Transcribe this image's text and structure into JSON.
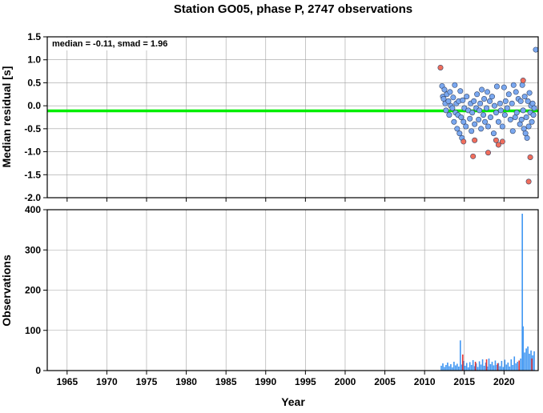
{
  "title": "Station GO05, phase P, 2747 observations",
  "x_axis_label": "Year",
  "chart_data": [
    {
      "type": "scatter",
      "ylabel": "Median residual [s]",
      "annotation": "median = -0.11, smad = 1.96",
      "xlim": [
        1962.5,
        2024.3
      ],
      "ylim": [
        -2.0,
        1.5
      ],
      "x_ticks": [
        1965,
        1970,
        1975,
        1980,
        1985,
        1990,
        1995,
        2000,
        2005,
        2010,
        2015,
        2020
      ],
      "y_ticks": [
        -2.0,
        -1.5,
        -1.0,
        -0.5,
        0.0,
        0.5,
        1.0,
        1.5
      ],
      "y_tick_labels": [
        "-2.0",
        "-1.5",
        "-1.0",
        "-0.5",
        "0.0",
        "0.5",
        "1.0",
        "1.5"
      ],
      "grid": true,
      "median_line": {
        "y": -0.11,
        "color": "#00ee00"
      },
      "series": [
        {
          "color": "#7aa8f0",
          "points": [
            [
              2012.2,
              0.43
            ],
            [
              2012.3,
              0.2
            ],
            [
              2012.4,
              0.15
            ],
            [
              2012.5,
              0.35
            ],
            [
              2012.6,
              0.05
            ],
            [
              2012.7,
              -0.1
            ],
            [
              2012.8,
              0.25
            ],
            [
              2013.0,
              0.1
            ],
            [
              2013.1,
              -0.2
            ],
            [
              2013.2,
              0.3
            ],
            [
              2013.3,
              0.0
            ],
            [
              2013.5,
              -0.05
            ],
            [
              2013.6,
              0.18
            ],
            [
              2013.7,
              -0.35
            ],
            [
              2013.8,
              0.45
            ],
            [
              2013.9,
              -0.15
            ],
            [
              2014.0,
              0.05
            ],
            [
              2014.1,
              -0.5
            ],
            [
              2014.2,
              -0.2
            ],
            [
              2014.3,
              0.1
            ],
            [
              2014.4,
              -0.6
            ],
            [
              2014.5,
              0.32
            ],
            [
              2014.6,
              -0.25
            ],
            [
              2014.7,
              -0.7
            ],
            [
              2014.8,
              0.12
            ],
            [
              2014.9,
              -0.35
            ],
            [
              2015.0,
              -0.05
            ],
            [
              2015.2,
              -0.45
            ],
            [
              2015.3,
              0.2
            ],
            [
              2015.5,
              -0.1
            ],
            [
              2015.7,
              -0.28
            ],
            [
              2015.8,
              0.05
            ],
            [
              2015.9,
              -0.55
            ],
            [
              2016.0,
              -0.15
            ],
            [
              2016.2,
              0.1
            ],
            [
              2016.3,
              -0.4
            ],
            [
              2016.5,
              -0.05
            ],
            [
              2016.6,
              0.25
            ],
            [
              2016.8,
              -0.3
            ],
            [
              2016.9,
              -0.1
            ],
            [
              2017.0,
              0.05
            ],
            [
              2017.1,
              -0.5
            ],
            [
              2017.2,
              0.35
            ],
            [
              2017.4,
              -0.2
            ],
            [
              2017.5,
              0.15
            ],
            [
              2017.6,
              -0.35
            ],
            [
              2017.8,
              -0.05
            ],
            [
              2017.9,
              0.3
            ],
            [
              2018.0,
              -0.45
            ],
            [
              2018.2,
              0.1
            ],
            [
              2018.3,
              -0.25
            ],
            [
              2018.5,
              0.2
            ],
            [
              2018.7,
              -0.6
            ],
            [
              2018.8,
              0.0
            ],
            [
              2019.0,
              -0.15
            ],
            [
              2019.1,
              0.42
            ],
            [
              2019.3,
              -0.35
            ],
            [
              2019.5,
              0.05
            ],
            [
              2019.6,
              -0.1
            ],
            [
              2019.8,
              -0.45
            ],
            [
              2020.0,
              0.4
            ],
            [
              2020.1,
              -0.2
            ],
            [
              2020.2,
              0.1
            ],
            [
              2020.4,
              -0.05
            ],
            [
              2020.6,
              0.25
            ],
            [
              2020.8,
              -0.3
            ],
            [
              2021.0,
              0.05
            ],
            [
              2021.1,
              -0.55
            ],
            [
              2021.2,
              0.45
            ],
            [
              2021.4,
              -0.25
            ],
            [
              2021.5,
              0.3
            ],
            [
              2021.6,
              -0.15
            ],
            [
              2021.8,
              0.15
            ],
            [
              2022.0,
              -0.4
            ],
            [
              2022.1,
              0.1
            ],
            [
              2022.2,
              -0.3
            ],
            [
              2022.3,
              0.45
            ],
            [
              2022.4,
              -0.1
            ],
            [
              2022.5,
              -0.5
            ],
            [
              2022.6,
              0.2
            ],
            [
              2022.7,
              -0.6
            ],
            [
              2022.8,
              -0.25
            ],
            [
              2022.9,
              -0.7
            ],
            [
              2023.0,
              0.1
            ],
            [
              2023.1,
              -0.45
            ],
            [
              2023.2,
              0.28
            ],
            [
              2023.3,
              -0.15
            ],
            [
              2023.4,
              0.0
            ],
            [
              2023.5,
              -0.35
            ],
            [
              2023.6,
              0.05
            ],
            [
              2023.7,
              -0.2
            ],
            [
              2023.8,
              -0.05
            ],
            [
              2024.0,
              1.22
            ]
          ]
        },
        {
          "color": "#f06e5c",
          "points": [
            [
              2012.0,
              0.83
            ],
            [
              2014.9,
              -0.78
            ],
            [
              2016.1,
              -1.1
            ],
            [
              2016.3,
              -0.75
            ],
            [
              2018.0,
              -1.02
            ],
            [
              2019.0,
              -0.75
            ],
            [
              2019.3,
              -0.85
            ],
            [
              2019.8,
              -0.78
            ],
            [
              2022.4,
              0.55
            ],
            [
              2023.3,
              -1.12
            ],
            [
              2023.1,
              -1.65
            ]
          ]
        }
      ]
    },
    {
      "type": "bar",
      "ylabel": "Observations",
      "xlim": [
        1962.5,
        2024.3
      ],
      "ylim": [
        0,
        400
      ],
      "x_ticks": [
        1965,
        1970,
        1975,
        1980,
        1985,
        1990,
        1995,
        2000,
        2005,
        2010,
        2015,
        2020
      ],
      "y_ticks": [
        0,
        100,
        200,
        300,
        400
      ],
      "grid": true,
      "series": [
        {
          "color": "#3f96f2",
          "bars": [
            [
              2012.1,
              12
            ],
            [
              2012.3,
              18
            ],
            [
              2012.5,
              9
            ],
            [
              2012.7,
              14
            ],
            [
              2012.9,
              20
            ],
            [
              2013.1,
              11
            ],
            [
              2013.3,
              16
            ],
            [
              2013.5,
              8
            ],
            [
              2013.7,
              22
            ],
            [
              2013.9,
              13
            ],
            [
              2014.1,
              17
            ],
            [
              2014.3,
              10
            ],
            [
              2014.5,
              75
            ],
            [
              2014.7,
              15
            ],
            [
              2014.9,
              24
            ],
            [
              2015.1,
              12
            ],
            [
              2015.3,
              19
            ],
            [
              2015.5,
              8
            ],
            [
              2015.7,
              21
            ],
            [
              2015.9,
              14
            ],
            [
              2016.1,
              26
            ],
            [
              2016.3,
              11
            ],
            [
              2016.5,
              18
            ],
            [
              2016.7,
              9
            ],
            [
              2016.9,
              23
            ],
            [
              2017.1,
              15
            ],
            [
              2017.3,
              28
            ],
            [
              2017.5,
              12
            ],
            [
              2017.7,
              20
            ],
            [
              2017.9,
              10
            ],
            [
              2018.1,
              30
            ],
            [
              2018.3,
              16
            ],
            [
              2018.5,
              22
            ],
            [
              2018.7,
              13
            ],
            [
              2018.9,
              25
            ],
            [
              2019.1,
              14
            ],
            [
              2019.3,
              19
            ],
            [
              2019.5,
              11
            ],
            [
              2019.7,
              24
            ],
            [
              2019.9,
              9
            ],
            [
              2020.1,
              27
            ],
            [
              2020.3,
              15
            ],
            [
              2020.5,
              20
            ],
            [
              2020.7,
              10
            ],
            [
              2020.9,
              28
            ],
            [
              2021.1,
              14
            ],
            [
              2021.3,
              35
            ],
            [
              2021.5,
              18
            ],
            [
              2021.7,
              22
            ],
            [
              2021.9,
              12
            ],
            [
              2022.1,
              30
            ],
            [
              2022.3,
              390
            ],
            [
              2022.4,
              110
            ],
            [
              2022.6,
              45
            ],
            [
              2022.8,
              55
            ],
            [
              2023.0,
              60
            ],
            [
              2023.2,
              42
            ],
            [
              2023.4,
              50
            ],
            [
              2023.6,
              38
            ],
            [
              2023.8,
              48
            ]
          ]
        },
        {
          "color": "#e53535",
          "bars": [
            [
              2014.8,
              40
            ],
            [
              2016.4,
              22
            ],
            [
              2017.8,
              28
            ],
            [
              2019.2,
              18
            ],
            [
              2021.9,
              25
            ],
            [
              2023.5,
              30
            ]
          ]
        }
      ]
    }
  ]
}
